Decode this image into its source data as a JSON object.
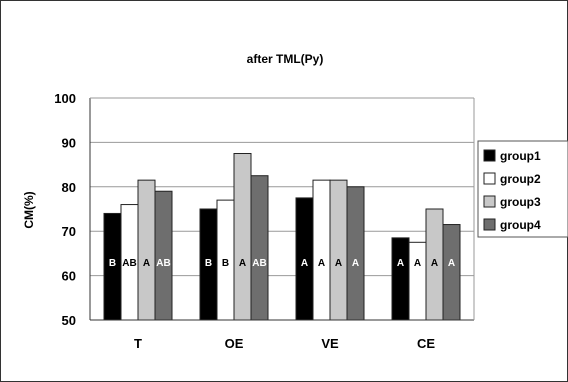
{
  "chart_data": {
    "type": "bar",
    "title": "after TML(Py)",
    "ylabel": "CM(%)",
    "xlabel": "",
    "ylim": [
      50,
      100
    ],
    "yticks": [
      50,
      60,
      70,
      80,
      90,
      100
    ],
    "categories": [
      "T",
      "OE",
      "VE",
      "CE"
    ],
    "grid": true,
    "legend_position": "right",
    "series": [
      {
        "name": "group1",
        "color": "#000000",
        "values": [
          74,
          75,
          77.5,
          68.5
        ],
        "labels": [
          "B",
          "B",
          "A",
          "A"
        ]
      },
      {
        "name": "group2",
        "color": "#ffffff",
        "values": [
          76,
          77,
          81.5,
          67.5
        ],
        "labels": [
          "AB",
          "B",
          "A",
          "A"
        ]
      },
      {
        "name": "group3",
        "color": "#c8c8c8",
        "values": [
          81.5,
          87.5,
          81.5,
          75
        ],
        "labels": [
          "A",
          "A",
          "A",
          "A"
        ]
      },
      {
        "name": "group4",
        "color": "#6e6e6e",
        "values": [
          79,
          82.5,
          80,
          71.5
        ],
        "labels": [
          "AB",
          "AB",
          "A",
          "A"
        ]
      }
    ]
  }
}
